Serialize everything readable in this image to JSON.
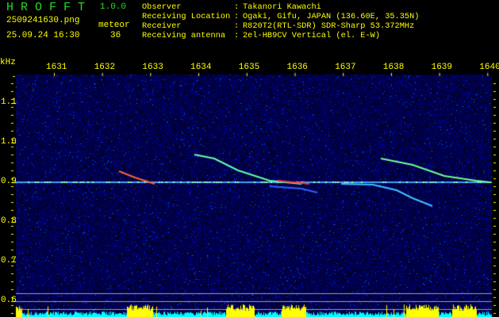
{
  "app": {
    "name": "H R O F F T",
    "version": "1.0.0"
  },
  "file": {
    "filename": "2509241630.png",
    "datetime": "25.09.24 16:30"
  },
  "meteor": {
    "label": "meteor",
    "count": "36"
  },
  "station": [
    {
      "label": "Observer",
      "value": "Takanori Kawachi"
    },
    {
      "label": "Receiving Location",
      "value": "Ogaki, Gifu, JAPAN (136.60E, 35.35N)"
    },
    {
      "label": "Receiver",
      "value": "R820T2(RTL-SDR) SDR-Sharp 53.372MHz"
    },
    {
      "label": "Receiving antenna",
      "value": "2el-HB9CV Vertical (el. E-W)"
    }
  ],
  "axes": {
    "y_unit": "kHz",
    "x_ticks": [
      "1631",
      "1632",
      "1633",
      "1634",
      "1635",
      "1636",
      "1637",
      "1638",
      "1639",
      "1640"
    ],
    "y_ticks": [
      "1.1",
      "1.0",
      "0.9",
      "0.8",
      "0.7",
      "0.6"
    ]
  },
  "colors": {
    "text": "#ffff00",
    "title": "#22dd22",
    "background_noise": "#0a0a80",
    "activity_low": "#00ffff",
    "activity_high": "#ffff00"
  }
}
